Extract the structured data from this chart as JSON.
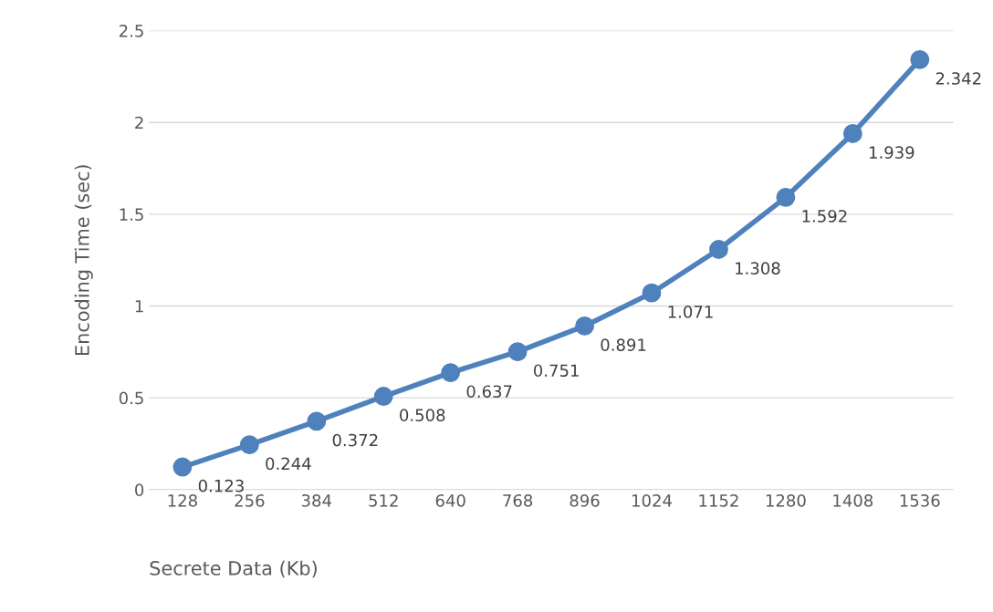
{
  "chart_data": {
    "type": "line",
    "xlabel": "Secrete Data (Kb)",
    "ylabel": "Encoding Time (sec)",
    "categories": [
      "128",
      "256",
      "384",
      "512",
      "640",
      "768",
      "896",
      "1024",
      "1152",
      "1280",
      "1408",
      "1536"
    ],
    "series": [
      {
        "color": "#4f81bd",
        "values": [
          0.123,
          0.244,
          0.372,
          0.508,
          0.637,
          0.751,
          0.891,
          1.071,
          1.308,
          1.592,
          1.939,
          2.342
        ]
      }
    ],
    "ylim": [
      0,
      2.5
    ],
    "yticks": [
      0,
      0.5,
      1,
      1.5,
      2,
      2.5
    ],
    "grid": "y",
    "marker": "circle",
    "line_style": "solid",
    "data_labels": true
  }
}
